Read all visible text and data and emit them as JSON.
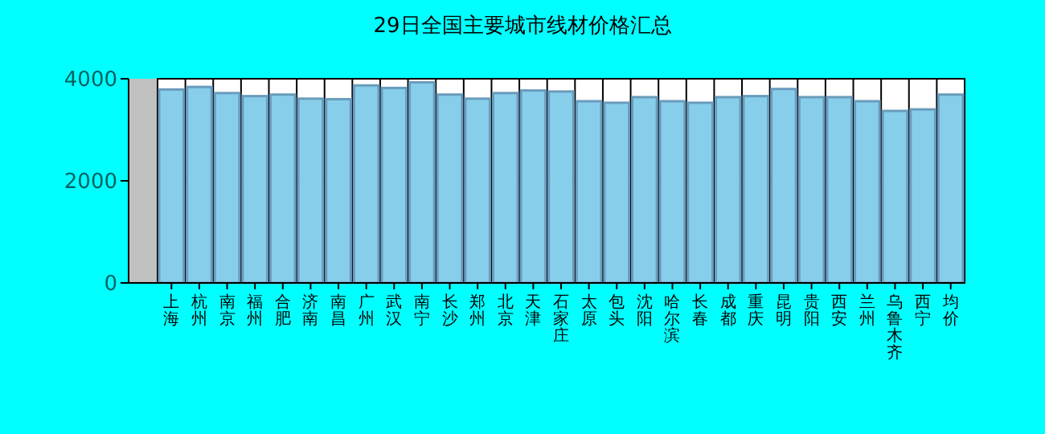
{
  "chart_data": {
    "type": "bar",
    "title": "29日全国主要城市线材价格汇总",
    "categories": [
      "上海",
      "杭州",
      "南京",
      "福州",
      "合肥",
      "济南",
      "南昌",
      "广州",
      "武汉",
      "南宁",
      "长沙",
      "郑州",
      "北京",
      "天津",
      "石家庄",
      "太原",
      "包头",
      "沈阳",
      "哈尔滨",
      "长春",
      "成都",
      "重庆",
      "昆明",
      "贵阳",
      "西安",
      "兰州",
      "乌鲁木齐",
      "西宁",
      "均价"
    ],
    "values": [
      3790,
      3840,
      3720,
      3660,
      3690,
      3610,
      3600,
      3870,
      3820,
      3930,
      3690,
      3610,
      3720,
      3770,
      3750,
      3560,
      3530,
      3640,
      3560,
      3530,
      3640,
      3660,
      3800,
      3640,
      3640,
      3560,
      3370,
      3400,
      3690
    ],
    "color": "#87ceeb",
    "ylim": [
      0,
      4000
    ],
    "yticks": [
      0,
      2000,
      4000
    ],
    "grid": true
  }
}
